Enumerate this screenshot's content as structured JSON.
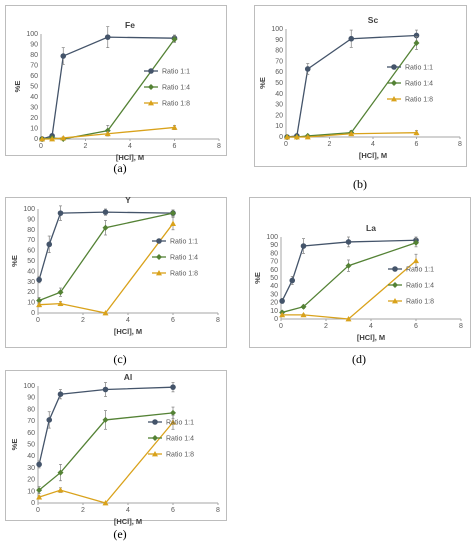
{
  "series_style": [
    {
      "color": "#44546a",
      "marker": "circle"
    },
    {
      "color": "#548235",
      "marker": "diamond"
    },
    {
      "color": "#d9a21b",
      "marker": "triangle"
    }
  ],
  "chart_data": [
    {
      "type": "line",
      "panel": "(a)",
      "title": "Fe",
      "xlabel": "[HCl], M",
      "ylabel": "%E",
      "xlim": [
        0,
        8
      ],
      "ylim": [
        0,
        100
      ],
      "xticks": [
        0,
        2,
        4,
        6,
        8
      ],
      "ystep": 10,
      "grid": false,
      "legend": "right",
      "series": [
        {
          "name": "Ratio 1:1",
          "x": [
            0.05,
            0.5,
            1,
            3,
            6
          ],
          "y": [
            0,
            3,
            79,
            97,
            96
          ],
          "err": [
            0,
            1,
            8,
            10,
            3
          ]
        },
        {
          "name": "Ratio 1:4",
          "x": [
            0.05,
            0.5,
            1,
            3,
            6
          ],
          "y": [
            0,
            1,
            0,
            8,
            95
          ],
          "err": [
            0,
            0,
            1,
            5,
            3
          ]
        },
        {
          "name": "Ratio 1:8",
          "x": [
            0.05,
            0.5,
            1,
            3,
            6
          ],
          "y": [
            0,
            0,
            1,
            5,
            11
          ],
          "err": [
            0,
            0,
            1,
            2,
            2
          ]
        }
      ]
    },
    {
      "type": "line",
      "panel": "(b)",
      "title": "Sc",
      "xlabel": "[HCl], M",
      "ylabel": "%E",
      "xlim": [
        0,
        8
      ],
      "ylim": [
        0,
        100
      ],
      "xticks": [
        0,
        2,
        4,
        6,
        8
      ],
      "ystep": 10,
      "grid": false,
      "legend": "right",
      "series": [
        {
          "name": "Ratio 1:1",
          "x": [
            0.05,
            0.5,
            1,
            3,
            6
          ],
          "y": [
            0,
            1,
            63,
            91,
            94
          ],
          "err": [
            0,
            1,
            5,
            8,
            5
          ]
        },
        {
          "name": "Ratio 1:4",
          "x": [
            0.05,
            0.5,
            1,
            3,
            6
          ],
          "y": [
            0,
            0,
            1,
            4,
            87
          ],
          "err": [
            0,
            0,
            1,
            2,
            6
          ]
        },
        {
          "name": "Ratio 1:8",
          "x": [
            0.05,
            0.5,
            1,
            3,
            6
          ],
          "y": [
            0,
            0,
            0,
            3,
            4
          ],
          "err": [
            0,
            0,
            1,
            1,
            2
          ]
        }
      ]
    },
    {
      "type": "line",
      "panel": "(c)",
      "title": "Y",
      "xlabel": "[HCl], M",
      "ylabel": "%E",
      "xlim": [
        0,
        8
      ],
      "ylim": [
        0,
        100
      ],
      "xticks": [
        0,
        2,
        4,
        6,
        8
      ],
      "ystep": 10,
      "grid": false,
      "legend": "right",
      "series": [
        {
          "name": "Ratio 1:1",
          "x": [
            0.05,
            0.5,
            1,
            3,
            6
          ],
          "y": [
            32,
            66,
            96,
            97,
            96
          ],
          "err": [
            3,
            8,
            7,
            3,
            3
          ]
        },
        {
          "name": "Ratio 1:4",
          "x": [
            0.05,
            0.5,
            1,
            3,
            6
          ],
          "y": [
            12,
            0,
            20,
            82,
            96
          ],
          "err": [
            3,
            0,
            4,
            7,
            3
          ]
        },
        {
          "name": "Ratio 1:8",
          "x": [
            0.05,
            0.5,
            1,
            3,
            6
          ],
          "y": [
            8,
            0,
            9,
            0,
            86
          ],
          "err": [
            2,
            0,
            2,
            0,
            6
          ]
        }
      ]
    },
    {
      "type": "line",
      "panel": "(d)",
      "title": "La",
      "xlabel": "[HCl], M",
      "ylabel": "%E",
      "xlim": [
        0,
        8
      ],
      "ylim": [
        0,
        100
      ],
      "xticks": [
        0,
        2,
        4,
        6,
        8
      ],
      "ystep": 10,
      "grid": false,
      "legend": "right",
      "series": [
        {
          "name": "Ratio 1:1",
          "x": [
            0.05,
            0.5,
            1,
            3,
            6
          ],
          "y": [
            22,
            47,
            89,
            94,
            96
          ],
          "err": [
            3,
            5,
            9,
            6,
            4
          ]
        },
        {
          "name": "Ratio 1:4",
          "x": [
            0.05,
            0.5,
            1,
            3,
            6
          ],
          "y": [
            8,
            0,
            15,
            65,
            93
          ],
          "err": [
            2,
            0,
            2,
            7,
            5
          ]
        },
        {
          "name": "Ratio 1:8",
          "x": [
            0.05,
            0.5,
            1,
            3,
            6
          ],
          "y": [
            5,
            0,
            5,
            0,
            71
          ],
          "err": [
            1,
            0,
            1,
            0,
            8
          ]
        }
      ]
    },
    {
      "type": "line",
      "panel": "(e)",
      "title": "Al",
      "xlabel": "[HCl], M",
      "ylabel": "%E",
      "xlim": [
        0,
        8
      ],
      "ylim": [
        0,
        100
      ],
      "xticks": [
        0,
        2,
        4,
        6,
        8
      ],
      "ystep": 10,
      "grid": false,
      "legend": "right",
      "series": [
        {
          "name": "Ratio 1:1",
          "x": [
            0.05,
            0.5,
            1,
            3,
            6
          ],
          "y": [
            33,
            71,
            93,
            97,
            99
          ],
          "err": [
            3,
            7,
            4,
            6,
            4
          ]
        },
        {
          "name": "Ratio 1:4",
          "x": [
            0.05,
            0.5,
            1,
            3,
            6
          ],
          "y": [
            11,
            0,
            26,
            71,
            77
          ],
          "err": [
            3,
            0,
            7,
            8,
            5
          ]
        },
        {
          "name": "Ratio 1:8",
          "x": [
            0.05,
            0.5,
            1,
            3,
            6
          ],
          "y": [
            5,
            0,
            11,
            0,
            69
          ],
          "err": [
            1,
            0,
            2,
            0,
            6
          ]
        }
      ]
    }
  ]
}
